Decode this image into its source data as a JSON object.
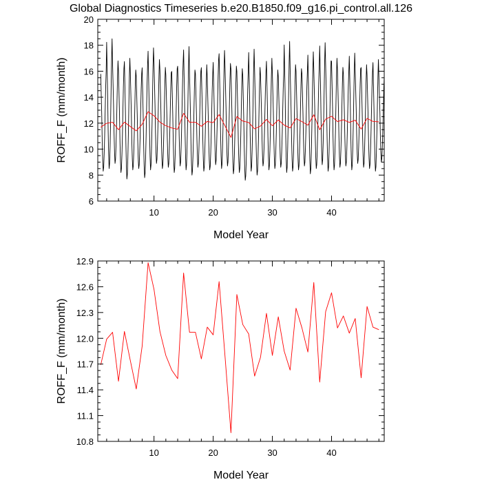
{
  "figure": {
    "title": "Global Diagnostics Timeseries b.e20.B1850.f09_g16.pi_control.all.126"
  },
  "colors": {
    "monthly": "#000000",
    "annual": "#ff0000",
    "axes": "#000000"
  },
  "chart_data": [
    {
      "type": "line",
      "title": "Global Diagnostics Timeseries b.e20.B1850.f09_g16.pi_control.all.126",
      "xlabel": "Model Year",
      "ylabel": "ROFF_F (mm/month)",
      "xlim": [
        0.5,
        48.9
      ],
      "ylim": [
        6,
        20
      ],
      "xticks": [
        10,
        20,
        30,
        40
      ],
      "xtick_labels": [
        "10",
        "20",
        "30",
        "40"
      ],
      "yticks": [
        6,
        8,
        10,
        12,
        14,
        16,
        18,
        20
      ],
      "ytick_labels": [
        "6",
        "8",
        "10",
        "12",
        "14",
        "16",
        "18",
        "20"
      ],
      "grid": false,
      "series": [
        {
          "role": "monthly",
          "color": "#000000",
          "x_start": 1,
          "x_step": 0.0833333,
          "seasonal_shape": [
            15.6,
            14.1,
            12.6,
            10.6,
            9.2,
            8.4,
            8.7,
            9.7,
            11.1,
            12.9,
            14.6,
            15.8
          ],
          "peaks": [
            16.0,
            18.5,
            16.8,
            16.2,
            17.0,
            16.1,
            15.8,
            16.5,
            17.8,
            16.9,
            16.3,
            15.9,
            16.2,
            16.6,
            17.9,
            16.1,
            16.0,
            16.5,
            15.7,
            16.9,
            17.6,
            16.6,
            16.4,
            16.2,
            15.9,
            17.7,
            16.3,
            15.9,
            17.0,
            16.1,
            15.8,
            18.3,
            16.5,
            16.2,
            16.0,
            17.5,
            16.4,
            18.2,
            16.8,
            17.0,
            16.3,
            16.0,
            17.4,
            16.2,
            16.5,
            15.9,
            16.9,
            15.8
          ],
          "troughs": [
            8.3,
            8.5,
            8.9,
            8.2,
            7.7,
            8.4,
            8.5,
            7.8,
            8.4,
            8.9,
            8.5,
            8.6,
            8.2,
            8.7,
            8.4,
            8.0,
            8.6,
            8.3,
            8.4,
            8.8,
            8.5,
            8.7,
            8.1,
            8.2,
            7.6,
            8.3,
            8.0,
            8.7,
            8.4,
            8.5,
            8.6,
            8.2,
            8.3,
            8.4,
            8.7,
            8.1,
            8.5,
            8.8,
            8.3,
            8.4,
            8.6,
            8.7,
            8.4,
            8.9,
            8.6,
            8.5,
            8.3,
            9.0
          ]
        },
        {
          "role": "annual",
          "color": "#ff0000",
          "x": [
            1,
            2,
            3,
            4,
            5,
            6,
            7,
            8,
            9,
            10,
            11,
            12,
            13,
            14,
            15,
            16,
            17,
            18,
            19,
            20,
            21,
            22,
            23,
            24,
            25,
            26,
            27,
            28,
            29,
            30,
            31,
            32,
            33,
            34,
            35,
            36,
            37,
            38,
            39,
            40,
            41,
            42,
            43,
            44,
            45,
            46,
            47,
            48
          ],
          "values": [
            11.69,
            11.99,
            12.07,
            11.5,
            12.08,
            11.74,
            11.41,
            11.91,
            12.88,
            12.57,
            12.08,
            11.8,
            11.63,
            11.53,
            12.76,
            12.07,
            12.07,
            11.76,
            12.13,
            12.04,
            12.66,
            11.79,
            10.9,
            12.51,
            12.16,
            12.05,
            11.56,
            11.78,
            12.29,
            11.8,
            12.25,
            11.85,
            11.63,
            12.35,
            12.12,
            11.84,
            12.65,
            11.49,
            12.31,
            12.53,
            12.12,
            12.26,
            12.06,
            12.23,
            11.54,
            12.37,
            12.13,
            12.1
          ]
        }
      ]
    },
    {
      "type": "line",
      "title": "",
      "xlabel": "Model Year",
      "ylabel": "ROFF_F (mm/month)",
      "xlim": [
        0.5,
        48.9
      ],
      "ylim": [
        10.8,
        12.9
      ],
      "xticks": [
        10,
        20,
        30,
        40
      ],
      "xtick_labels": [
        "10",
        "20",
        "30",
        "40"
      ],
      "yticks": [
        10.8,
        11.1,
        11.4,
        11.7,
        12.0,
        12.3,
        12.6,
        12.9
      ],
      "ytick_labels": [
        "10.8",
        "11.1",
        "11.4",
        "11.7",
        "12.0",
        "12.3",
        "12.6",
        "12.9"
      ],
      "grid": false,
      "series": [
        {
          "role": "annual",
          "color": "#ff0000",
          "x": [
            1,
            2,
            3,
            4,
            5,
            6,
            7,
            8,
            9,
            10,
            11,
            12,
            13,
            14,
            15,
            16,
            17,
            18,
            19,
            20,
            21,
            22,
            23,
            24,
            25,
            26,
            27,
            28,
            29,
            30,
            31,
            32,
            33,
            34,
            35,
            36,
            37,
            38,
            39,
            40,
            41,
            42,
            43,
            44,
            45,
            46,
            47,
            48
          ],
          "values": [
            11.69,
            11.99,
            12.07,
            11.5,
            12.08,
            11.74,
            11.41,
            11.91,
            12.88,
            12.57,
            12.08,
            11.8,
            11.63,
            11.53,
            12.76,
            12.07,
            12.07,
            11.76,
            12.13,
            12.04,
            12.66,
            11.79,
            10.9,
            12.51,
            12.16,
            12.05,
            11.56,
            11.78,
            12.29,
            11.8,
            12.25,
            11.85,
            11.63,
            12.35,
            12.12,
            11.84,
            12.65,
            11.49,
            12.31,
            12.53,
            12.12,
            12.26,
            12.06,
            12.23,
            11.54,
            12.37,
            12.13,
            12.1
          ]
        }
      ]
    }
  ]
}
